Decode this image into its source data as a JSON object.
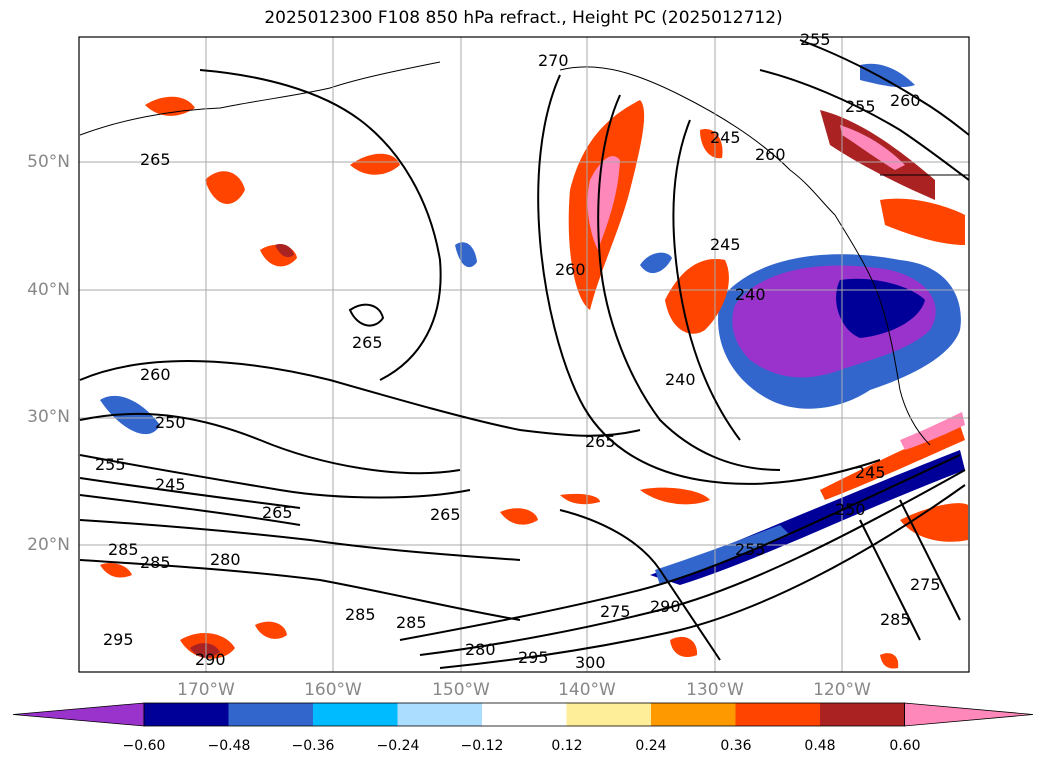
{
  "title": "2025012300 F108 850 hPa refract., Height PC (2025012712)",
  "map": {
    "lat_labels": [
      "50°N",
      "40°N",
      "30°N",
      "20°N"
    ],
    "lon_labels": [
      "170°W",
      "160°W",
      "150°W",
      "140°W",
      "130°W",
      "120°W"
    ],
    "contour_labels": [
      "270",
      "255",
      "260",
      "255",
      "265",
      "245",
      "240",
      "245",
      "240",
      "265",
      "260",
      "260",
      "250",
      "255",
      "245",
      "265",
      "265",
      "265",
      "285",
      "285",
      "280",
      "285",
      "285",
      "295",
      "290",
      "280",
      "295",
      "300",
      "275",
      "290",
      "245",
      "250",
      "255",
      "275",
      "285",
      "260"
    ]
  },
  "colorbar": {
    "colors": [
      "#9933cc",
      "#000099",
      "#3366cc",
      "#00bbff",
      "#aaddff",
      "#ffffff",
      "#ffee99",
      "#ff9900",
      "#ff4400",
      "#aa2222",
      "#ff88bb"
    ],
    "ticks": [
      "−0.60",
      "−0.48",
      "−0.36",
      "−0.24",
      "−0.12",
      "0.12",
      "0.24",
      "0.36",
      "0.48",
      "0.60"
    ]
  }
}
